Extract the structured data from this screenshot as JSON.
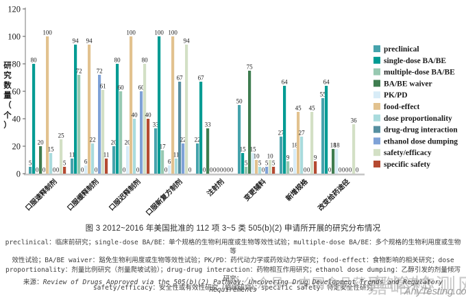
{
  "chart_data": {
    "type": "bar",
    "title": "",
    "ylabel": "研究数量（个）",
    "xlabel": "",
    "ylim": [
      0,
      120
    ],
    "yticks": [
      0,
      20,
      40,
      60,
      80,
      100,
      120
    ],
    "grid": false,
    "legend_position": "right",
    "categories": [
      "口服速释制剂",
      "口服缓释制剂",
      "口服迟释制剂",
      "口服新复方制剂",
      "注射剂",
      "变更辅料",
      "新增规格",
      "改变给药途径"
    ],
    "series": [
      {
        "name": "preclinical",
        "color": "#46a3ac",
        "values": [
          5,
          11,
          20,
          33,
          22,
          50,
          27,
          55
        ]
      },
      {
        "name": "single-dose BA/BE",
        "color": "#009b93",
        "values": [
          80,
          94,
          80,
          100,
          67,
          15,
          64,
          64
        ]
      },
      {
        "name": "multiple-dose BA/BE",
        "color": "#97c9b1",
        "values": [
          0,
          72,
          60,
          17,
          0,
          5,
          9,
          0
        ]
      },
      {
        "name": "BA/BE waiver",
        "color": "#3f7d50",
        "values": [
          20,
          0,
          0,
          0,
          33,
          75,
          0,
          18
        ]
      },
      {
        "name": "PK/PD",
        "color": "#d8ecf7",
        "values": [
          0,
          6,
          20,
          6,
          0,
          15,
          18,
          18
        ]
      },
      {
        "name": "food-effect",
        "color": "#e2c28f",
        "values": [
          100,
          94,
          100,
          100,
          0,
          10,
          45,
          0
        ]
      },
      {
        "name": "dose proportionality",
        "color": "#a9dbdd",
        "values": [
          15,
          22,
          40,
          11,
          0,
          5,
          27,
          0
        ]
      },
      {
        "name": "drug-drug interaction",
        "color": "#568fa0",
        "values": [
          0,
          0,
          0,
          67,
          0,
          0,
          0,
          0
        ]
      },
      {
        "name": "ethanol dose dumping",
        "color": "#7fa2d7",
        "values": [
          0,
          72,
          60,
          22,
          0,
          5,
          0,
          0
        ]
      },
      {
        "name": "safety/efficacy",
        "color": "#d3e0c5",
        "values": [
          25,
          61,
          80,
          94,
          0,
          10,
          45,
          36
        ]
      },
      {
        "name": "specific safety",
        "color": "#b54a31",
        "values": [
          5,
          11,
          40,
          0,
          0,
          5,
          9,
          0
        ]
      }
    ]
  },
  "caption": "图 3 2012~2016 年美国批准的 112 项 3~5 类 505(b)(2) 申请所开展的研究分布情况",
  "notes_lines": [
    "preclinical：临床前研究；single-dose BA/BE：单个规格的生物利用度或生物等效性试验；multiple-dose BA/BE：多个规格的生物利用度或生物等",
    "效性试验；BA/BE waiver：豁免生物利用度或生物等效性试验；PK/PD：药代动力学或药效动力学研究；food-effect：食物影响的相关研究；dose",
    "proportionality：剂量比例研究（剂量爬坡试验）；drug-drug interaction：药物相互作用研究；ethanol dose dumping：乙醇引发的剂量倾泻研究；",
    "safety/efficacy：安全性或有效性研究（临床研究）；specific safety：特定安全性研究"
  ],
  "source_label": "来源：",
  "source_text": "Review of Drugs Approved via the 505(b)(2) Pathway: Uncovering Drug Development Trends and Regulatory Requirements",
  "watermarks": {
    "wechat": "公众号－中国食品药品监管杂志",
    "site": "嘉峪检测网",
    "url": "AnyTesting.com"
  }
}
